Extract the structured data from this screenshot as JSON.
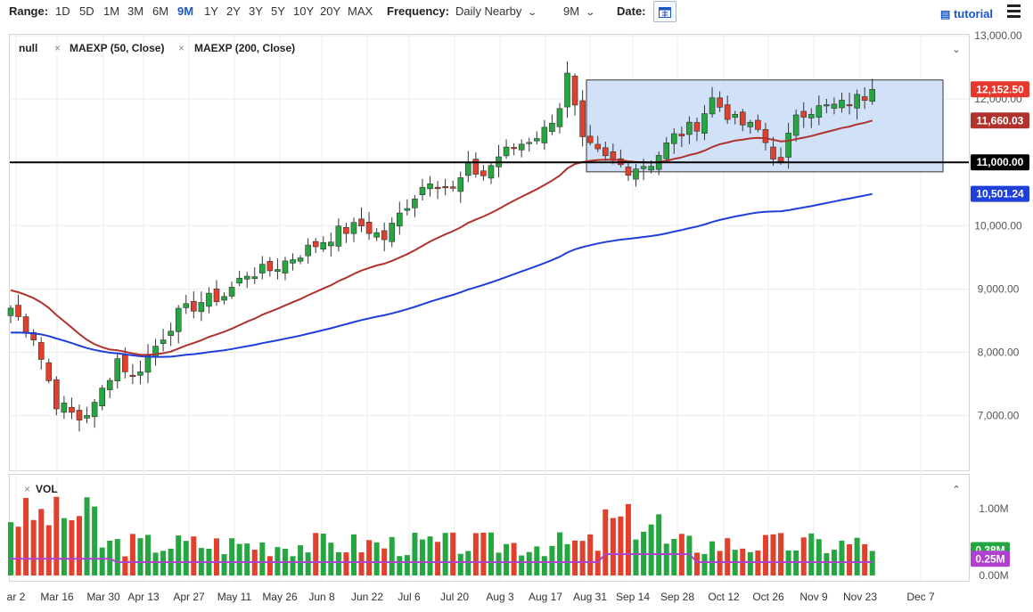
{
  "toolbar": {
    "range_label": "Range:",
    "ranges": [
      "1D",
      "5D",
      "1M",
      "3M",
      "6M",
      "9M",
      "1Y",
      "2Y",
      "3Y",
      "5Y",
      "10Y",
      "20Y",
      "MAX"
    ],
    "active_range": "9M",
    "frequency_label": "Frequency:",
    "frequency_value": "Daily Nearby",
    "period_value": "9M",
    "date_label": "Date:",
    "tutorial_label": "tutorial"
  },
  "legend": {
    "symbol": "null",
    "study1": "MAEXP (50, Close)",
    "study2": "MAEXP (200, Close)",
    "vol_label": "VOL"
  },
  "colors": {
    "up": "#26a641",
    "down": "#e0402c",
    "ma50": "#b0322c",
    "ma200": "#1e3fd9",
    "vol_ma": "#b040d0",
    "box_fill": "#c9ddf7",
    "box_stroke": "#333333",
    "last_price_tag": "#e8372c",
    "ma50_tag": "#b0322c",
    "level_tag": "#000000",
    "ma200_tag": "#1e3fd9",
    "vol_tag": "#26a641",
    "vol_ma_tag": "#b040d0"
  },
  "chart_data": {
    "type": "candlestick",
    "date_range": [
      "2020-03-02",
      "2020-11-27"
    ],
    "x_tick_labels": [
      "ar 2",
      "Mar 16",
      "Mar 30",
      "Apr 13",
      "Apr 27",
      "May 11",
      "May 26",
      "Jun 8",
      "Jun 22",
      "Jul 6",
      "Jul 20",
      "Aug 3",
      "Aug 17",
      "Aug 31",
      "Sep 14",
      "Sep 28",
      "Oct 12",
      "Oct 26",
      "Nov 9",
      "Nov 23",
      "Dec 7"
    ],
    "y_tick_labels": [
      "13,000.00",
      "12,000.00",
      "11,000.00",
      "10,000.00",
      "9,000.00",
      "8,000.00",
      "7,000.00"
    ],
    "ylim": [
      6050,
      13050
    ],
    "close_points": [
      [
        0,
        8700
      ],
      [
        3,
        8250
      ],
      [
        6,
        7200
      ],
      [
        9,
        6950
      ],
      [
        11,
        7150
      ],
      [
        14,
        7900
      ],
      [
        16,
        7600
      ],
      [
        19,
        8100
      ],
      [
        22,
        8600
      ],
      [
        25,
        8800
      ],
      [
        28,
        8900
      ],
      [
        31,
        9250
      ],
      [
        34,
        9300
      ],
      [
        37,
        9500
      ],
      [
        40,
        9700
      ],
      [
        43,
        9900
      ],
      [
        46,
        10000
      ],
      [
        49,
        9800
      ],
      [
        52,
        10350
      ],
      [
        55,
        10750
      ],
      [
        58,
        10550
      ],
      [
        60,
        10900
      ],
      [
        62,
        10800
      ],
      [
        64,
        11100
      ],
      [
        67,
        11300
      ],
      [
        70,
        11500
      ],
      [
        72,
        11900
      ],
      [
        73,
        12350
      ],
      [
        75,
        11300
      ],
      [
        78,
        11050
      ],
      [
        81,
        10900
      ],
      [
        84,
        11000
      ],
      [
        87,
        11400
      ],
      [
        90,
        11600
      ],
      [
        92,
        12000
      ],
      [
        95,
        11650
      ],
      [
        98,
        11500
      ],
      [
        101,
        10950
      ],
      [
        103,
        11800
      ],
      [
        106,
        11850
      ],
      [
        109,
        11900
      ],
      [
        112,
        12050
      ],
      [
        113,
        12152.5
      ]
    ],
    "current_price": "12,152.50",
    "ma50_value": "11,660.03",
    "ma200_value": "10,501.24",
    "horizontal_level": "11,000.00",
    "consolidation_box": [
      10850,
      12300
    ],
    "volume": {
      "y_tick_labels": [
        "1.00M",
        "0.00M"
      ],
      "last_volume": "0.38M",
      "volume_ma": "0.25M"
    }
  }
}
